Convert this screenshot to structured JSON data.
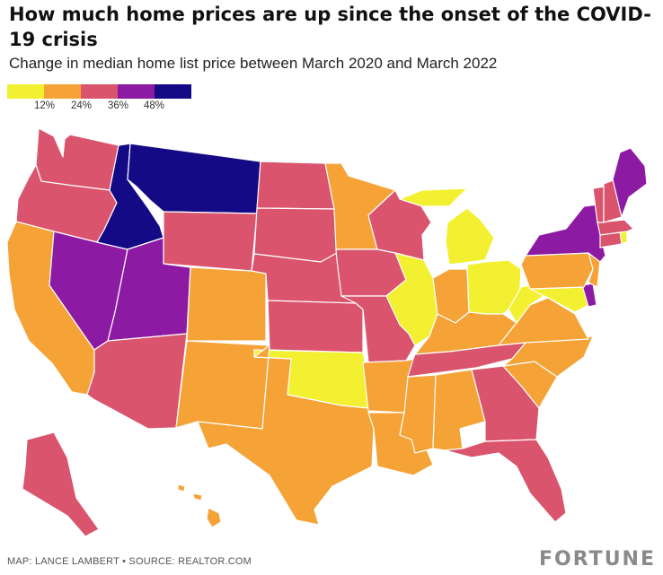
{
  "title": "How much home prices are up since the onset of the COVID-19 crisis",
  "subtitle": "Change in median home list price between March 2020 and March 2022",
  "legend": {
    "colors": [
      "#f2f030",
      "#f5a236",
      "#d9546c",
      "#8d1aa3",
      "#150a85"
    ],
    "labels": [
      "12%",
      "24%",
      "36%",
      "48%"
    ]
  },
  "map": {
    "type": "choropleth",
    "region": "United States",
    "bins": [
      {
        "range": "below 12%",
        "color": "#f2f030"
      },
      {
        "range": "12%–24%",
        "color": "#f5a236"
      },
      {
        "range": "24%–36%",
        "color": "#d9546c"
      },
      {
        "range": "36%–48%",
        "color": "#8d1aa3"
      },
      {
        "range": "above 48%",
        "color": "#150a85"
      }
    ],
    "states": {
      "WA": 2,
      "OR": 2,
      "CA": 1,
      "NV": 3,
      "ID": 4,
      "MT": 4,
      "WY": 2,
      "UT": 3,
      "AZ": 2,
      "CO": 1,
      "NM": 1,
      "ND": 2,
      "SD": 2,
      "NE": 2,
      "KS": 2,
      "OK": 0,
      "TX": 1,
      "MN": 1,
      "IA": 2,
      "MO": 2,
      "AR": 1,
      "LA": 1,
      "WI": 2,
      "IL": 0,
      "MI": 0,
      "IN": 1,
      "OH": 0,
      "KY": 1,
      "TN": 2,
      "MS": 1,
      "AL": 1,
      "GA": 2,
      "FL": 2,
      "SC": 1,
      "NC": 1,
      "VA": 1,
      "WV": 0,
      "MD": 0,
      "DE": 3,
      "NJ": 1,
      "PA": 1,
      "NY": 3,
      "CT": 2,
      "RI": 0,
      "MA": 2,
      "VT": 2,
      "NH": 2,
      "ME": 3,
      "AK": 2,
      "HI": 1
    }
  },
  "footer": "MAP: LANCE LAMBERT • SOURCE: REALTOR.COM",
  "brand": "FORTUNE"
}
